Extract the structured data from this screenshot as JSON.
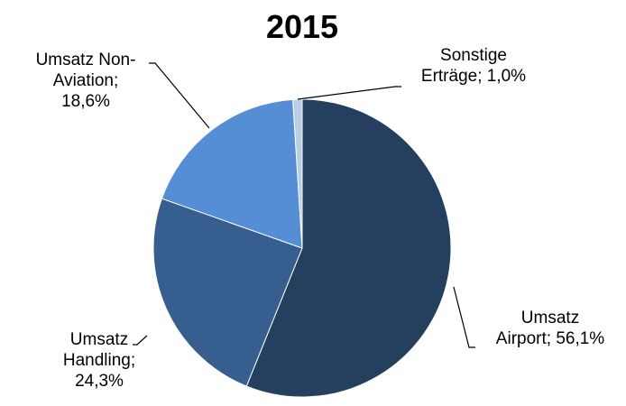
{
  "chart_data": {
    "type": "pie",
    "title": "2015",
    "values": [
      56.1,
      24.3,
      18.6,
      1.0
    ],
    "value_labels": [
      "Umsatz Airport; 56,1%",
      "Umsatz Handling; 24,3%",
      "Umsatz Non-Aviation; 18,6%",
      "Sonstige Erträge; 1,0%"
    ],
    "colors": [
      "#253f5f",
      "#365f8f",
      "#558ed5",
      "#b9cde5"
    ]
  }
}
